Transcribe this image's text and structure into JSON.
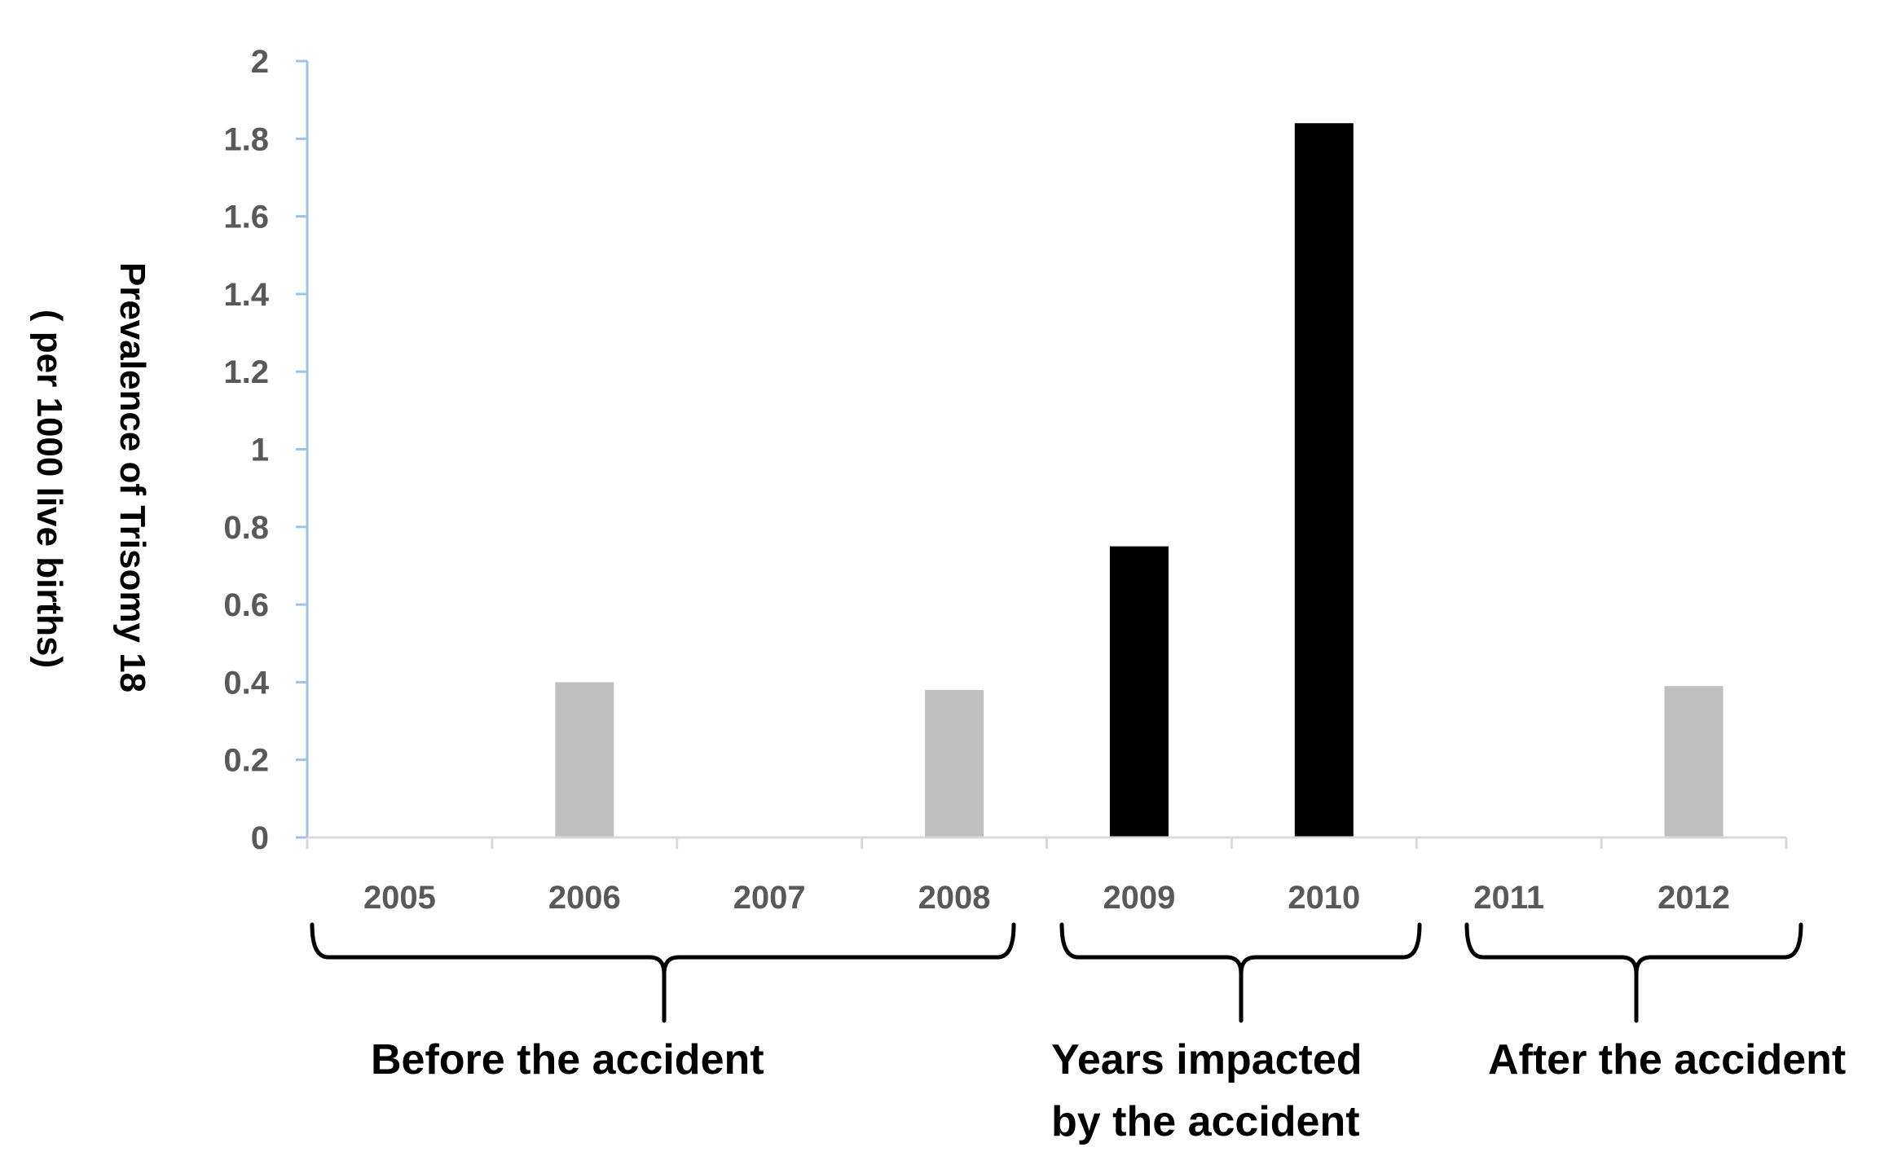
{
  "chart_data": {
    "type": "bar",
    "title": "",
    "xlabel": "",
    "ylabel_line1": "Prevalence of Trisomy 18",
    "ylabel_line2": "( per 1000 live births)",
    "categories": [
      "2005",
      "2006",
      "2007",
      "2008",
      "2009",
      "2010",
      "2011",
      "2012"
    ],
    "values": [
      0,
      0.4,
      0,
      0.38,
      0.75,
      1.84,
      0,
      0.39
    ],
    "bar_colors": [
      "#bfbfbf",
      "#bfbfbf",
      "#bfbfbf",
      "#bfbfbf",
      "#000000",
      "#000000",
      "#bfbfbf",
      "#bfbfbf"
    ],
    "ylim": [
      0,
      2
    ],
    "yticks": [
      {
        "value": 0,
        "label": "0"
      },
      {
        "value": 0.2,
        "label": "0.2"
      },
      {
        "value": 0.4,
        "label": "0.4"
      },
      {
        "value": 0.6,
        "label": "0.6"
      },
      {
        "value": 0.8,
        "label": "0.8"
      },
      {
        "value": 1,
        "label": "1"
      },
      {
        "value": 1.2,
        "label": "1.2"
      },
      {
        "value": 1.4,
        "label": "1.4"
      },
      {
        "value": 1.6,
        "label": "1.6"
      },
      {
        "value": 1.8,
        "label": "1.8"
      },
      {
        "value": 2,
        "label": "2"
      }
    ],
    "grid": false,
    "legend": "none",
    "axis_color": "#9dc3e6",
    "groups": [
      {
        "lines": [
          "Before the accident"
        ],
        "from": "2005",
        "to": "2008"
      },
      {
        "lines": [
          "Years impacted",
          "by the accident"
        ],
        "from": "2009",
        "to": "2010"
      },
      {
        "lines": [
          "After the accident"
        ],
        "from": "2011",
        "to": "2012"
      }
    ]
  }
}
